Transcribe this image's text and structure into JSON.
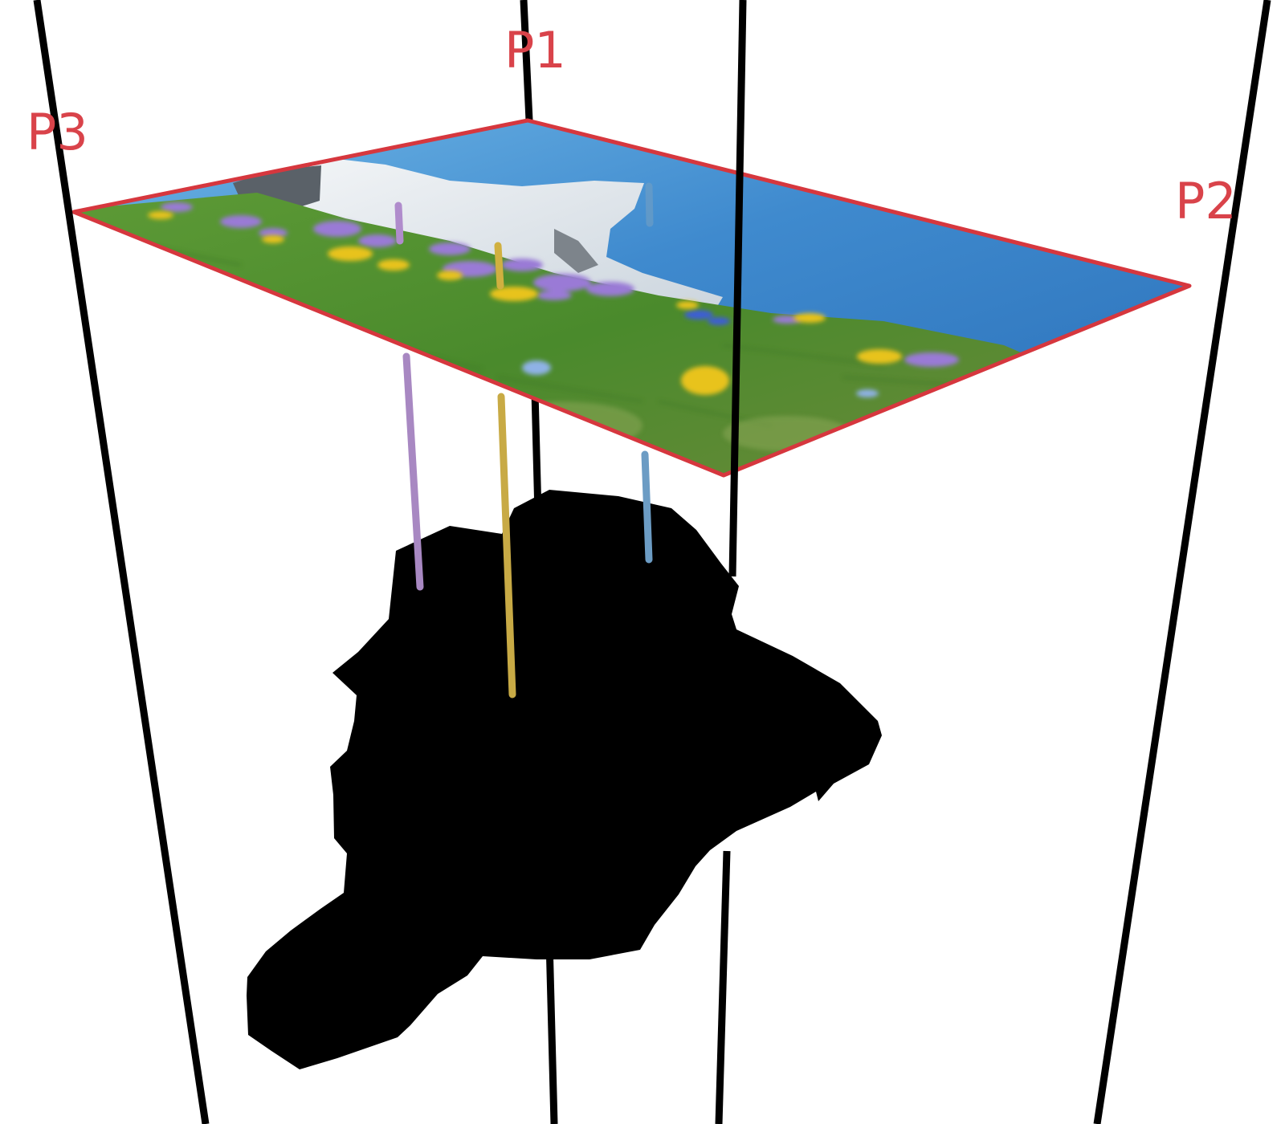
{
  "labels": {
    "p1": "P1",
    "p2": "P2",
    "p3": "P3"
  },
  "colors": {
    "label": "#d9434a",
    "plane_border": "#d6373e",
    "frame": "#000000",
    "silhouette": "#000000",
    "sky_top": "#2b74bf",
    "sky_bottom": "#69b2e2",
    "grass": "#4f8e31",
    "flower_purple": "#9a7ad6",
    "flower_yellow": "#e8c31a",
    "snow": "#e9eef3",
    "rock": "#5a6168",
    "line_purple": "#a888c2",
    "line_yellow": "#c8aa45",
    "line_blue": "#6c9cc4"
  },
  "icons": {
    "plane": "landscape-photo-plane",
    "object": "object-silhouette"
  }
}
